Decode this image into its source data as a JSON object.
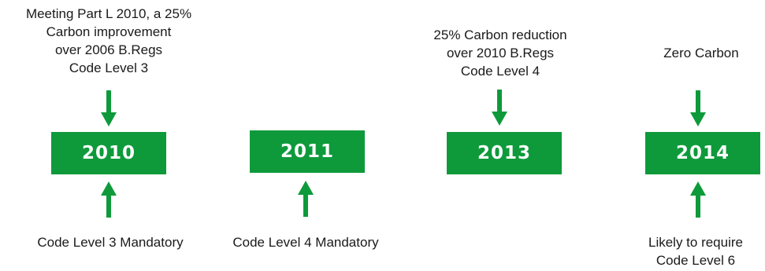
{
  "timeline": {
    "milestones": [
      {
        "year": "2010",
        "top_text": "Meeting Part L 2010, a 25%\nCarbon improvement\nover 2006 B.Regs\nCode Level 3",
        "bottom_text": "Code Level 3 Mandatory"
      },
      {
        "year": "2011",
        "top_text": "",
        "bottom_text": "Code Level 4 Mandatory"
      },
      {
        "year": "2013",
        "top_text": "25% Carbon reduction\nover 2010 B.Regs\nCode Level 4",
        "bottom_text": ""
      },
      {
        "year": "2014",
        "top_text": "Zero Carbon",
        "bottom_text": "Likely to require\nCode Level 6"
      }
    ]
  },
  "colors": {
    "accent_green": "#0e9a3b"
  }
}
